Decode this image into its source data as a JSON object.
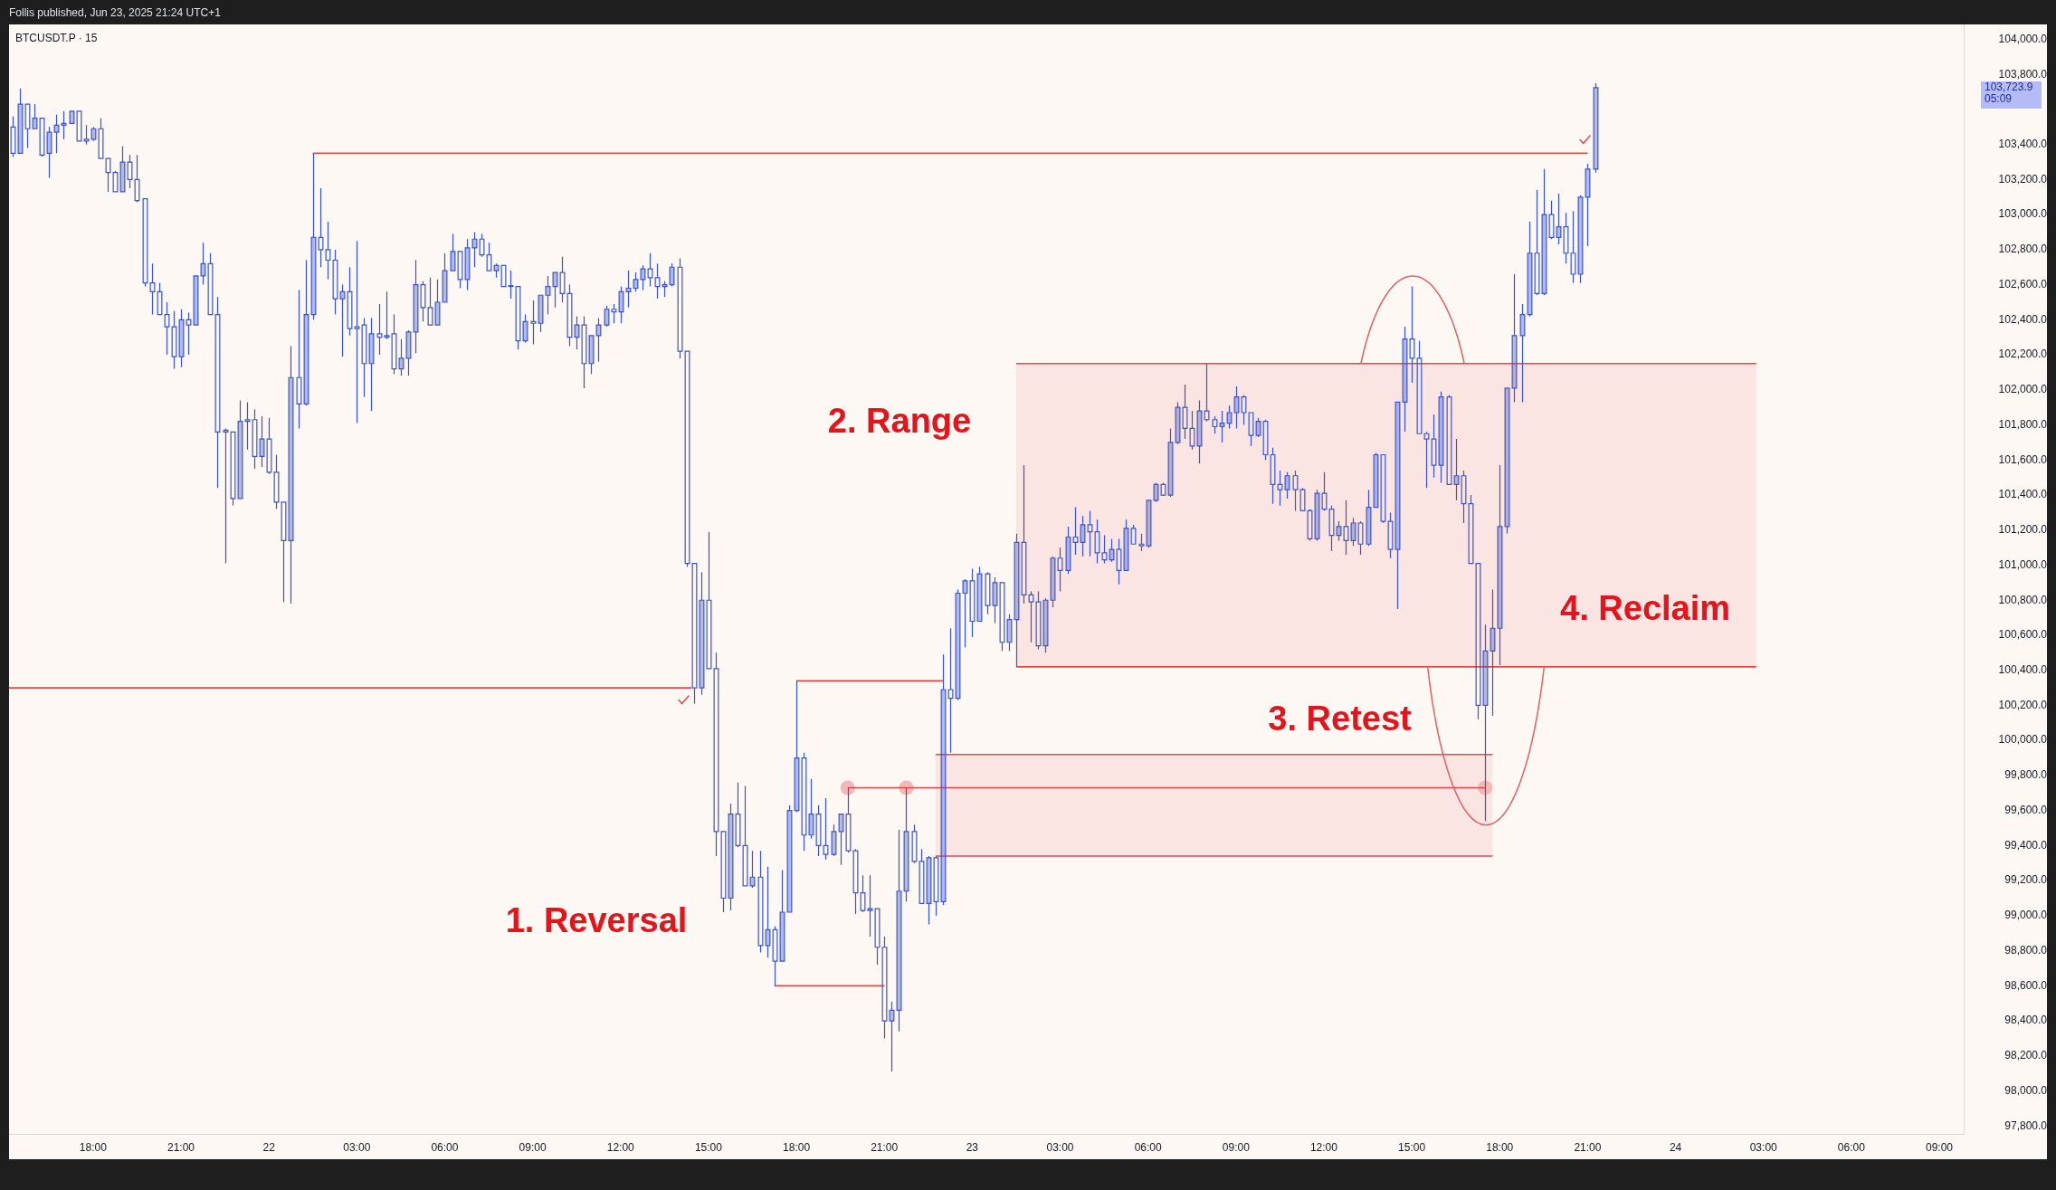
{
  "chart_data": {
    "type": "candlestick",
    "title": "BTCUSDT.P · 15",
    "subtitle": "Follis published, Jun 23, 2025 21:24 UTC+1",
    "color": "#3a55cf",
    "x": [
      "2025-06-21T15:15",
      "2025-06-21T15:30",
      "2025-06-21T15:45",
      "2025-06-21T16:00",
      "2025-06-21T16:15",
      "2025-06-21T16:30",
      "2025-06-21T16:45",
      "2025-06-21T17:00",
      "2025-06-21T17:15",
      "2025-06-21T17:30",
      "2025-06-21T17:45",
      "2025-06-21T18:00",
      "2025-06-21T18:15",
      "2025-06-21T18:30",
      "2025-06-21T18:45",
      "2025-06-21T19:00",
      "2025-06-21T19:15",
      "2025-06-21T19:30",
      "2025-06-21T19:45",
      "2025-06-21T20:00",
      "2025-06-21T20:15",
      "2025-06-21T20:30",
      "2025-06-21T20:45",
      "2025-06-21T21:00",
      "2025-06-21T21:15",
      "2025-06-21T21:30",
      "2025-06-21T21:45",
      "2025-06-21T22:00",
      "2025-06-21T22:15",
      "2025-06-21T22:30",
      "2025-06-21T22:45",
      "2025-06-21T23:00",
      "2025-06-21T23:15",
      "2025-06-21T23:30",
      "2025-06-21T23:45",
      "2025-06-22T00:00",
      "2025-06-22T00:15",
      "2025-06-22T00:30",
      "2025-06-22T00:45",
      "2025-06-22T01:00",
      "2025-06-22T01:15",
      "2025-06-22T01:30",
      "2025-06-22T01:45",
      "2025-06-22T02:00",
      "2025-06-22T02:15",
      "2025-06-22T02:30",
      "2025-06-22T02:45",
      "2025-06-22T03:00",
      "2025-06-22T03:15",
      "2025-06-22T03:30",
      "2025-06-22T03:45",
      "2025-06-22T04:00",
      "2025-06-22T04:15",
      "2025-06-22T04:30",
      "2025-06-22T04:45",
      "2025-06-22T05:00",
      "2025-06-22T05:15",
      "2025-06-22T05:30",
      "2025-06-22T05:45",
      "2025-06-22T06:00",
      "2025-06-22T06:15",
      "2025-06-22T06:30",
      "2025-06-22T06:45",
      "2025-06-22T07:00",
      "2025-06-22T07:15",
      "2025-06-22T07:30",
      "2025-06-22T07:45",
      "2025-06-22T08:00",
      "2025-06-22T08:15",
      "2025-06-22T08:30",
      "2025-06-22T08:45",
      "2025-06-22T09:00",
      "2025-06-22T09:15",
      "2025-06-22T09:30",
      "2025-06-22T09:45",
      "2025-06-22T10:00",
      "2025-06-22T10:15",
      "2025-06-22T10:30",
      "2025-06-22T10:45",
      "2025-06-22T11:00",
      "2025-06-22T11:15",
      "2025-06-22T11:30",
      "2025-06-22T11:45",
      "2025-06-22T12:00",
      "2025-06-22T12:15",
      "2025-06-22T12:30",
      "2025-06-22T12:45",
      "2025-06-22T13:00",
      "2025-06-22T13:15",
      "2025-06-22T13:30",
      "2025-06-22T13:45",
      "2025-06-22T14:00",
      "2025-06-22T14:15",
      "2025-06-22T14:30",
      "2025-06-22T14:45",
      "2025-06-22T15:00",
      "2025-06-22T15:15",
      "2025-06-22T15:30",
      "2025-06-22T15:45",
      "2025-06-22T16:00",
      "2025-06-22T16:15",
      "2025-06-22T16:30",
      "2025-06-22T16:45",
      "2025-06-22T17:00",
      "2025-06-22T17:15",
      "2025-06-22T17:30",
      "2025-06-22T17:45",
      "2025-06-22T18:00",
      "2025-06-22T18:15",
      "2025-06-22T18:30",
      "2025-06-22T18:45",
      "2025-06-22T19:00",
      "2025-06-22T19:15",
      "2025-06-22T19:30",
      "2025-06-22T19:45",
      "2025-06-22T20:00",
      "2025-06-22T20:15",
      "2025-06-22T20:30",
      "2025-06-22T20:45",
      "2025-06-22T21:00",
      "2025-06-22T21:15",
      "2025-06-22T21:30",
      "2025-06-22T21:45",
      "2025-06-22T22:00",
      "2025-06-22T22:15",
      "2025-06-22T22:30",
      "2025-06-22T22:45",
      "2025-06-22T23:00",
      "2025-06-22T23:15",
      "2025-06-22T23:30",
      "2025-06-22T23:45",
      "2025-06-23T00:00",
      "2025-06-23T00:15",
      "2025-06-23T00:30",
      "2025-06-23T00:45",
      "2025-06-23T01:00",
      "2025-06-23T01:15",
      "2025-06-23T01:30",
      "2025-06-23T01:45",
      "2025-06-23T02:00",
      "2025-06-23T02:15",
      "2025-06-23T02:30",
      "2025-06-23T02:45",
      "2025-06-23T03:00",
      "2025-06-23T03:15",
      "2025-06-23T03:30",
      "2025-06-23T03:45",
      "2025-06-23T04:00",
      "2025-06-23T04:15",
      "2025-06-23T04:30",
      "2025-06-23T04:45",
      "2025-06-23T05:00",
      "2025-06-23T05:15",
      "2025-06-23T05:30",
      "2025-06-23T05:45",
      "2025-06-23T06:00",
      "2025-06-23T06:15",
      "2025-06-23T06:30",
      "2025-06-23T06:45",
      "2025-06-23T07:00",
      "2025-06-23T07:15",
      "2025-06-23T07:30",
      "2025-06-23T07:45",
      "2025-06-23T08:00",
      "2025-06-23T08:15",
      "2025-06-23T08:30",
      "2025-06-23T08:45",
      "2025-06-23T09:00",
      "2025-06-23T09:15",
      "2025-06-23T09:30",
      "2025-06-23T09:45",
      "2025-06-23T10:00",
      "2025-06-23T10:15",
      "2025-06-23T10:30",
      "2025-06-23T10:45",
      "2025-06-23T11:00",
      "2025-06-23T11:15",
      "2025-06-23T11:30",
      "2025-06-23T11:45",
      "2025-06-23T12:00",
      "2025-06-23T12:15",
      "2025-06-23T12:30",
      "2025-06-23T12:45",
      "2025-06-23T13:00",
      "2025-06-23T13:15",
      "2025-06-23T13:30",
      "2025-06-23T13:45",
      "2025-06-23T14:00",
      "2025-06-23T14:15",
      "2025-06-23T14:30",
      "2025-06-23T14:45",
      "2025-06-23T15:00",
      "2025-06-23T15:15",
      "2025-06-23T15:30",
      "2025-06-23T15:45",
      "2025-06-23T16:00",
      "2025-06-23T16:15",
      "2025-06-23T16:30",
      "2025-06-23T16:45",
      "2025-06-23T17:00",
      "2025-06-23T17:15",
      "2025-06-23T17:30",
      "2025-06-23T17:45",
      "2025-06-23T18:00",
      "2025-06-23T18:15",
      "2025-06-23T18:30",
      "2025-06-23T18:45",
      "2025-06-23T19:00",
      "2025-06-23T19:15",
      "2025-06-23T19:30",
      "2025-06-23T19:45",
      "2025-06-23T20:00",
      "2025-06-23T20:15",
      "2025-06-23T20:30",
      "2025-06-23T20:45",
      "2025-06-23T21:00",
      "2025-06-23T21:15"
    ],
    "ohlc": [
      [
        103500,
        103560,
        103330,
        103350
      ],
      [
        103350,
        103720,
        103350,
        103630
      ],
      [
        103630,
        103630,
        103380,
        103490
      ],
      [
        103490,
        103630,
        103490,
        103550
      ],
      [
        103550,
        103550,
        103330,
        103340
      ],
      [
        103350,
        103500,
        103210,
        103470
      ],
      [
        103470,
        103570,
        103350,
        103510
      ],
      [
        103510,
        103590,
        103430,
        103520
      ],
      [
        103520,
        103590,
        103520,
        103590
      ],
      [
        103590,
        103590,
        103420,
        103420
      ],
      [
        103430,
        103510,
        103400,
        103420
      ],
      [
        103430,
        103500,
        103420,
        103490
      ],
      [
        103490,
        103550,
        103320,
        103320
      ],
      [
        103320,
        103320,
        103130,
        103240
      ],
      [
        103240,
        103250,
        103130,
        103130
      ],
      [
        103130,
        103390,
        103130,
        103300
      ],
      [
        103300,
        103340,
        103150,
        103200
      ],
      [
        103200,
        103340,
        103070,
        103080
      ],
      [
        103090,
        103090,
        102590,
        102610
      ],
      [
        102610,
        102720,
        102430,
        102560
      ],
      [
        102560,
        102610,
        102430,
        102430
      ],
      [
        102430,
        102500,
        102200,
        102360
      ],
      [
        102360,
        102450,
        102120,
        102190
      ],
      [
        102190,
        102460,
        102130,
        102400
      ],
      [
        102400,
        102440,
        102200,
        102370
      ],
      [
        102370,
        102650,
        102370,
        102650
      ],
      [
        102650,
        102840,
        102600,
        102720
      ],
      [
        102720,
        102780,
        102430,
        102430
      ],
      [
        102430,
        102530,
        101440,
        101760
      ],
      [
        101760,
        101780,
        101010,
        101770
      ],
      [
        101760,
        101760,
        101340,
        101380
      ],
      [
        101380,
        101940,
        101380,
        101820
      ],
      [
        101820,
        101930,
        101660,
        101830
      ],
      [
        101830,
        101890,
        101550,
        101620
      ],
      [
        101620,
        101850,
        101560,
        101720
      ],
      [
        101720,
        101840,
        101520,
        101530
      ],
      [
        101530,
        101630,
        101320,
        101360
      ],
      [
        101360,
        101360,
        100790,
        101140
      ],
      [
        101140,
        102250,
        100780,
        102070
      ],
      [
        102070,
        102570,
        101780,
        101920
      ],
      [
        101920,
        102740,
        101910,
        102430
      ],
      [
        102430,
        103350,
        102400,
        102870
      ],
      [
        102870,
        103150,
        102700,
        102800
      ],
      [
        102800,
        102960,
        102630,
        102740
      ],
      [
        102740,
        102800,
        102430,
        102520
      ],
      [
        102520,
        102600,
        102190,
        102560
      ],
      [
        102560,
        102700,
        102310,
        102350
      ],
      [
        102360,
        102850,
        101810,
        102350
      ],
      [
        102370,
        102410,
        101960,
        102150
      ],
      [
        102150,
        102410,
        101880,
        102320
      ],
      [
        102320,
        102490,
        102200,
        102300
      ],
      [
        102300,
        102560,
        102290,
        102310
      ],
      [
        102320,
        102430,
        102090,
        102120
      ],
      [
        102120,
        102290,
        102080,
        102180
      ],
      [
        102180,
        102340,
        102080,
        102330
      ],
      [
        102330,
        102740,
        102210,
        102600
      ],
      [
        102600,
        102620,
        102390,
        102470
      ],
      [
        102470,
        102640,
        102370,
        102370
      ],
      [
        102370,
        102630,
        102370,
        102500
      ],
      [
        102500,
        102780,
        102500,
        102680
      ],
      [
        102680,
        102890,
        102680,
        102790
      ],
      [
        102790,
        102790,
        102580,
        102630
      ],
      [
        102630,
        102860,
        102570,
        102810
      ],
      [
        102810,
        102900,
        102700,
        102860
      ],
      [
        102860,
        102890,
        102760,
        102770
      ],
      [
        102770,
        102840,
        102680,
        102680
      ],
      [
        102680,
        102720,
        102640,
        102710
      ],
      [
        102710,
        102710,
        102590,
        102590
      ],
      [
        102590,
        102680,
        102520,
        102595
      ],
      [
        102590,
        102590,
        102230,
        102280
      ],
      [
        102280,
        102430,
        102270,
        102390
      ],
      [
        102390,
        102510,
        102260,
        102380
      ],
      [
        102380,
        102540,
        102330,
        102540
      ],
      [
        102540,
        102650,
        102430,
        102590
      ],
      [
        102590,
        102670,
        102470,
        102670
      ],
      [
        102670,
        102760,
        102500,
        102550
      ],
      [
        102550,
        102600,
        102250,
        102300
      ],
      [
        102300,
        102420,
        102230,
        102370
      ],
      [
        102370,
        102420,
        102010,
        102150
      ],
      [
        102150,
        102310,
        102090,
        102310
      ],
      [
        102310,
        102410,
        102160,
        102370
      ],
      [
        102370,
        102480,
        102360,
        102460
      ],
      [
        102460,
        102490,
        102380,
        102445
      ],
      [
        102445,
        102590,
        102380,
        102560
      ],
      [
        102560,
        102680,
        102470,
        102580
      ],
      [
        102580,
        102670,
        102560,
        102630
      ],
      [
        102630,
        102710,
        102570,
        102690
      ],
      [
        102690,
        102780,
        102590,
        102640
      ],
      [
        102640,
        102720,
        102520,
        102590
      ],
      [
        102590,
        102620,
        102530,
        102600
      ],
      [
        102600,
        102720,
        102590,
        102700
      ],
      [
        102700,
        102750,
        102180,
        102220
      ],
      [
        102220,
        102220,
        100990,
        101010
      ],
      [
        101010,
        101010,
        100210,
        100300
      ],
      [
        100300,
        100960,
        100260,
        100800
      ],
      [
        100800,
        101190,
        100410,
        100410
      ],
      [
        100410,
        100500,
        99340,
        99480
      ],
      [
        99480,
        99480,
        99020,
        99100
      ],
      [
        99100,
        99640,
        99030,
        99580
      ],
      [
        99580,
        99760,
        99390,
        99400
      ],
      [
        99400,
        99740,
        99170,
        99170
      ],
      [
        99170,
        99370,
        99160,
        99220
      ],
      [
        99220,
        99370,
        98790,
        98830
      ],
      [
        98830,
        99280,
        98760,
        98920
      ],
      [
        98920,
        98940,
        98600,
        98740
      ],
      [
        98740,
        99260,
        98740,
        99020
      ],
      [
        99020,
        99630,
        99020,
        99600
      ],
      [
        99600,
        100340,
        99590,
        99900
      ],
      [
        99900,
        99930,
        99370,
        99460
      ],
      [
        99460,
        99780,
        99440,
        99580
      ],
      [
        99580,
        99630,
        99340,
        99400
      ],
      [
        99400,
        99670,
        99320,
        99350
      ],
      [
        99350,
        99520,
        99340,
        99480
      ],
      [
        99480,
        99580,
        99290,
        99580
      ],
      [
        99580,
        99730,
        99360,
        99370
      ],
      [
        99370,
        99380,
        99010,
        99130
      ],
      [
        99130,
        99230,
        99020,
        99030
      ],
      [
        99030,
        99230,
        98880,
        99040
      ],
      [
        99040,
        99040,
        98720,
        98820
      ],
      [
        98820,
        98880,
        98300,
        98400
      ],
      [
        98400,
        98510,
        98110,
        98460
      ],
      [
        98460,
        99490,
        98340,
        99140
      ],
      [
        99140,
        99730,
        99080,
        99480
      ],
      [
        99480,
        99520,
        99300,
        99310
      ],
      [
        99310,
        99380,
        99070,
        99070
      ],
      [
        99070,
        99340,
        98950,
        99330
      ],
      [
        99330,
        99340,
        99000,
        99080
      ],
      [
        99080,
        100490,
        99060,
        100290
      ],
      [
        100290,
        100640,
        99930,
        100240
      ],
      [
        100240,
        100860,
        100230,
        100840
      ],
      [
        100840,
        100920,
        100530,
        100910
      ],
      [
        100910,
        100980,
        100590,
        100680
      ],
      [
        100680,
        100990,
        100680,
        100950
      ],
      [
        100950,
        100960,
        100720,
        100770
      ],
      [
        100770,
        100930,
        100670,
        100900
      ],
      [
        100900,
        100900,
        100510,
        100560
      ],
      [
        100560,
        100720,
        100510,
        100690
      ],
      [
        100690,
        101180,
        100420,
        101130
      ],
      [
        101130,
        101570,
        100780,
        100830
      ],
      [
        100830,
        100850,
        100560,
        100790
      ],
      [
        100790,
        100850,
        100520,
        100540
      ],
      [
        100540,
        100810,
        100500,
        100800
      ],
      [
        100800,
        101050,
        100760,
        101040
      ],
      [
        101040,
        101100,
        100850,
        100970
      ],
      [
        100970,
        101220,
        100950,
        101160
      ],
      [
        101160,
        101330,
        101060,
        101130
      ],
      [
        101130,
        101280,
        101050,
        101230
      ],
      [
        101230,
        101310,
        101050,
        101190
      ],
      [
        101190,
        101260,
        101010,
        101070
      ],
      [
        101070,
        101170,
        101010,
        101030
      ],
      [
        101030,
        101150,
        101020,
        101090
      ],
      [
        101090,
        101150,
        100890,
        100970
      ],
      [
        100970,
        101260,
        100970,
        101210
      ],
      [
        101210,
        101230,
        101120,
        101120
      ],
      [
        101120,
        101180,
        101080,
        101110
      ],
      [
        101110,
        101375,
        101100,
        101370
      ],
      [
        101370,
        101470,
        101360,
        101460
      ],
      [
        101460,
        101470,
        101395,
        101400
      ],
      [
        101400,
        101780,
        101390,
        101700
      ],
      [
        101700,
        101930,
        101690,
        101900
      ],
      [
        101900,
        102030,
        101720,
        101780
      ],
      [
        101780,
        101880,
        101660,
        101680
      ],
      [
        101680,
        101940,
        101580,
        101880
      ],
      [
        101880,
        102150,
        101820,
        101830
      ],
      [
        101830,
        101850,
        101750,
        101790
      ],
      [
        101790,
        101880,
        101700,
        101810
      ],
      [
        101810,
        101910,
        101780,
        101870
      ],
      [
        101870,
        102020,
        101780,
        101960
      ],
      [
        101960,
        101970,
        101800,
        101870
      ],
      [
        101870,
        101870,
        101680,
        101740
      ],
      [
        101740,
        101840,
        101730,
        101820
      ],
      [
        101820,
        101830,
        101600,
        101630
      ],
      [
        101630,
        101670,
        101350,
        101460
      ],
      [
        101460,
        101540,
        101340,
        101430
      ],
      [
        101430,
        101530,
        101380,
        101510
      ],
      [
        101510,
        101540,
        101310,
        101430
      ],
      [
        101430,
        101440,
        101310,
        101310
      ],
      [
        101310,
        101320,
        101140,
        101150
      ],
      [
        101150,
        101430,
        101140,
        101410
      ],
      [
        101410,
        101530,
        101310,
        101320
      ],
      [
        101320,
        101340,
        101080,
        101170
      ],
      [
        101170,
        101250,
        101140,
        101220
      ],
      [
        101220,
        101370,
        101060,
        101140
      ],
      [
        101140,
        101270,
        101110,
        101240
      ],
      [
        101240,
        101250,
        101060,
        101120
      ],
      [
        101120,
        101430,
        101110,
        101330
      ],
      [
        101330,
        101640,
        101330,
        101630
      ],
      [
        101630,
        101630,
        101240,
        101250
      ],
      [
        101250,
        101300,
        101040,
        101090
      ],
      [
        101090,
        101930,
        100750,
        101930
      ],
      [
        101930,
        102360,
        101760,
        102290
      ],
      [
        102290,
        102590,
        102040,
        102180
      ],
      [
        102180,
        102280,
        101750,
        101750
      ],
      [
        101750,
        101760,
        101440,
        101720
      ],
      [
        101720,
        101860,
        101500,
        101570
      ],
      [
        101570,
        101990,
        101470,
        101960
      ],
      [
        101960,
        101970,
        101460,
        101460
      ],
      [
        101460,
        101720,
        101370,
        101510
      ],
      [
        101510,
        101540,
        101240,
        101350
      ],
      [
        101350,
        101400,
        101010,
        101010
      ],
      [
        101010,
        101010,
        100120,
        100200
      ],
      [
        100200,
        100660,
        99540,
        100510
      ],
      [
        100510,
        100860,
        100140,
        100640
      ],
      [
        100640,
        101570,
        100430,
        101220
      ],
      [
        101220,
        102010,
        101180,
        102010
      ],
      [
        102010,
        102660,
        101930,
        102310
      ],
      [
        102310,
        102490,
        101930,
        102430
      ],
      [
        102430,
        102960,
        102420,
        102780
      ],
      [
        102780,
        103140,
        102540,
        102550
      ],
      [
        102550,
        103260,
        102540,
        103000
      ],
      [
        103000,
        103080,
        102860,
        102870
      ],
      [
        102870,
        103120,
        102830,
        102930
      ],
      [
        102930,
        103010,
        102720,
        102780
      ],
      [
        102780,
        103020,
        102610,
        102660
      ],
      [
        102660,
        103110,
        102610,
        103100
      ],
      [
        103100,
        103290,
        102820,
        103260
      ],
      [
        103260,
        103750,
        103240,
        103723.9
      ]
    ],
    "series": [
      {
        "type": "line",
        "color": "#e8474a",
        "x": [
          "2025-06-22T01:30",
          "2025-06-23T21:00"
        ],
        "values": [
          103350,
          103350
        ]
      },
      {
        "type": "line",
        "color": "#e8474a",
        "x": [
          "2025-06-21T15:08",
          "2025-06-22T14:25"
        ],
        "values": [
          100300,
          100300
        ]
      },
      {
        "type": "line",
        "color": "#e8474a",
        "x": [
          "2025-06-22T18:00",
          "2025-06-22T23:00"
        ],
        "values": [
          100340,
          100340
        ]
      },
      {
        "type": "line",
        "color": "#e8474a",
        "x": [
          "2025-06-22T17:15",
          "2025-06-22T21:00"
        ],
        "values": [
          98600,
          98600
        ]
      },
      {
        "type": "line",
        "color": "#e8474a",
        "x": [
          "2025-06-23T01:30",
          "2025-06-24T02:45"
        ],
        "values": [
          102150,
          102150
        ],
        "lower": [
          100420,
          100420
        ],
        "upper": [
          102150,
          102150
        ]
      },
      {
        "type": "line",
        "color": "#e8474a",
        "x": [
          "2025-06-23T01:30",
          "2025-06-24T02:45"
        ],
        "values": [
          100420,
          100420
        ]
      },
      {
        "type": "line",
        "color": "#e8474a",
        "x": [
          "2025-06-22T22:45",
          "2025-06-23T17:45"
        ],
        "values": [
          99920,
          99920
        ],
        "lower": [
          99340,
          99340
        ],
        "upper": [
          99920,
          99920
        ]
      },
      {
        "type": "line",
        "color": "#e8474a",
        "x": [
          "2025-06-22T19:45",
          "2025-06-23T17:30"
        ],
        "values": [
          99730,
          99730
        ]
      },
      {
        "type": "line",
        "color": "#e8474a",
        "x": [
          "2025-06-22T22:45",
          "2025-06-23T17:45"
        ],
        "values": [
          99340,
          99340
        ]
      },
      {
        "type": "scatter",
        "color": "#f5b8b5",
        "marker": "circle",
        "x": [
          "2025-06-22T19:45",
          "2025-06-22T21:45",
          "2025-06-23T17:30"
        ],
        "values": [
          99730,
          99730,
          99730
        ]
      }
    ],
    "annotations": [
      "1. Reversal",
      "2. Range",
      {
        "text": "3. Retest",
        "x": "2025-06-23T17:30",
        "y": 99730
      },
      {
        "text": "4. Reclaim",
        "x": "2025-06-23T18:15",
        "y": 100420
      },
      "103,723.9\n05:09"
    ],
    "xlim": [
      "2025-06-21T15:08",
      "2025-06-24T09:50"
    ],
    "xticks": [
      {
        "value": "2025-06-21T18:00",
        "label": "18:00"
      },
      {
        "value": "2025-06-21T21:00",
        "label": "21:00"
      },
      {
        "value": "2025-06-22T00:00",
        "label": "22"
      },
      {
        "value": "2025-06-22T03:00",
        "label": "03:00"
      },
      {
        "value": "2025-06-22T06:00",
        "label": "06:00"
      },
      {
        "value": "2025-06-22T09:00",
        "label": "09:00"
      },
      {
        "value": "2025-06-22T12:00",
        "label": "12:00"
      },
      {
        "value": "2025-06-22T15:00",
        "label": "15:00"
      },
      {
        "value": "2025-06-22T18:00",
        "label": "18:00"
      },
      {
        "value": "2025-06-22T21:00",
        "label": "21:00"
      },
      {
        "value": "2025-06-23T00:00",
        "label": "23"
      },
      {
        "value": "2025-06-23T03:00",
        "label": "03:00"
      },
      {
        "value": "2025-06-23T06:00",
        "label": "06:00"
      },
      {
        "value": "2025-06-23T09:00",
        "label": "09:00"
      },
      {
        "value": "2025-06-23T12:00",
        "label": "12:00"
      },
      {
        "value": "2025-06-23T15:00",
        "label": "15:00"
      },
      {
        "value": "2025-06-23T18:00",
        "label": "18:00"
      },
      {
        "value": "2025-06-23T21:00",
        "label": "21:00"
      },
      {
        "value": "2025-06-24T00:00",
        "label": "24"
      },
      {
        "value": "2025-06-24T03:00",
        "label": "03:00"
      },
      {
        "value": "2025-06-24T06:00",
        "label": "06:00"
      },
      {
        "value": "2025-06-24T09:00",
        "label": "09:00"
      }
    ],
    "ylim": [
      97755,
      104085
    ],
    "yticks": [
      {
        "value": 97800,
        "label": "97,800.0"
      },
      {
        "value": 98000,
        "label": "98,000.0"
      },
      {
        "value": 98200,
        "label": "98,200.0"
      },
      {
        "value": 98400,
        "label": "98,400.0"
      },
      {
        "value": 98600,
        "label": "98,600.0"
      },
      {
        "value": 98800,
        "label": "98,800.0"
      },
      {
        "value": 99000,
        "label": "99,000.0"
      },
      {
        "value": 99200,
        "label": "99,200.0"
      },
      {
        "value": 99400,
        "label": "99,400.0"
      },
      {
        "value": 99600,
        "label": "99,600.0"
      },
      {
        "value": 99800,
        "label": "99,800.0"
      },
      {
        "value": 100000,
        "label": "100,000.0"
      },
      {
        "value": 100200,
        "label": "100,200.0"
      },
      {
        "value": 100400,
        "label": "100,400.0"
      },
      {
        "value": 100600,
        "label": "100,600.0"
      },
      {
        "value": 100800,
        "label": "100,800.0"
      },
      {
        "value": 101000,
        "label": "101,000.0"
      },
      {
        "value": 101200,
        "label": "101,200.0"
      },
      {
        "value": 101400,
        "label": "101,400.0"
      },
      {
        "value": 101600,
        "label": "101,600.0"
      },
      {
        "value": 101800,
        "label": "101,800.0"
      },
      {
        "value": 102000,
        "label": "102,000.0"
      },
      {
        "value": 102200,
        "label": "102,200.0"
      },
      {
        "value": 102400,
        "label": "102,400.0"
      },
      {
        "value": 102600,
        "label": "102,600.0"
      },
      {
        "value": 102800,
        "label": "102,800.0"
      },
      {
        "value": 103000,
        "label": "103,000.0"
      },
      {
        "value": 103200,
        "label": "103,200.0"
      },
      {
        "value": 103400,
        "label": "103,400.0"
      },
      {
        "value": 103800,
        "label": "103,800.0"
      },
      {
        "value": 104000,
        "label": "104,000.0"
      }
    ]
  }
}
